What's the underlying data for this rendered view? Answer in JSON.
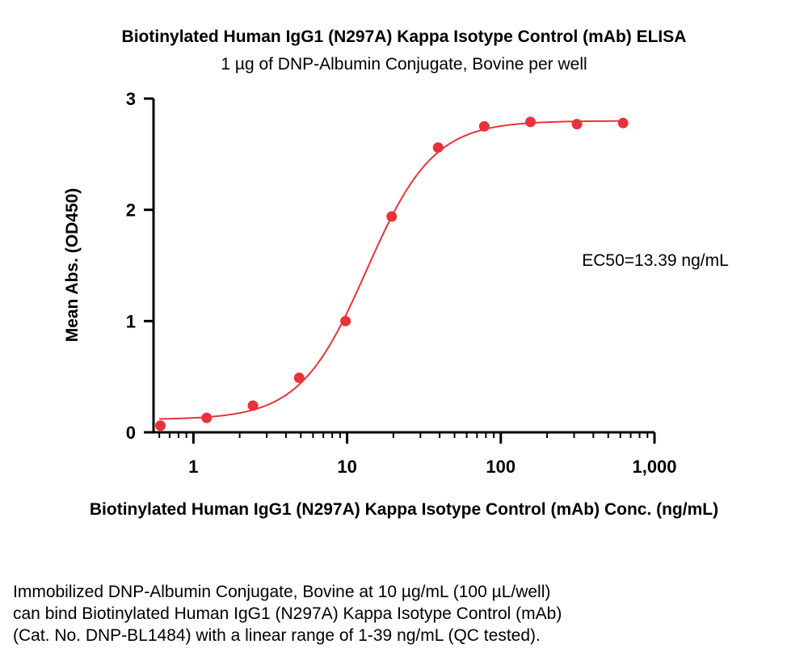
{
  "chart_data": {
    "type": "scatter",
    "title": "Biotinylated Human IgG1 (N297A) Kappa Isotype Control (mAb) ELISA",
    "subtitle": "1 µg of DNP-Albumin Conjugate, Bovine per well",
    "xlabel": "Biotinylated Human IgG1 (N297A) Kappa Isotype Control (mAb) Conc. (ng/mL)",
    "ylabel": "Mean Abs. (OD450)",
    "x_scale": "log",
    "xlim": [
      0.55,
      1000
    ],
    "ylim": [
      0,
      3
    ],
    "x_ticks": [
      1,
      10,
      100,
      1000
    ],
    "x_tick_labels": [
      "1",
      "10",
      "100",
      "1,000"
    ],
    "y_ticks": [
      0,
      1,
      2,
      3
    ],
    "y_tick_labels": [
      "0",
      "1",
      "2",
      "3"
    ],
    "grid": false,
    "annotation": "EC50=13.39 ng/mL",
    "color": "#e8323a",
    "points": {
      "x": [
        0.61,
        1.22,
        2.44,
        4.88,
        9.77,
        19.5,
        39.1,
        78.1,
        156,
        313,
        625
      ],
      "y": [
        0.06,
        0.13,
        0.24,
        0.49,
        1.0,
        1.94,
        2.56,
        2.75,
        2.79,
        2.77,
        2.78
      ]
    },
    "fit": {
      "model": "4PL",
      "bottom": 0.115,
      "top": 2.8,
      "ec50": 13.39,
      "hill": 2.0
    }
  },
  "caption": [
    "Immobilized DNP-Albumin Conjugate, Bovine at 10 µg/mL (100 µL/well)",
    "can bind Biotinylated Human IgG1 (N297A) Kappa Isotype Control (mAb)",
    "(Cat. No. DNP-BL1484) with a linear range of 1-39 ng/mL (QC tested)."
  ]
}
